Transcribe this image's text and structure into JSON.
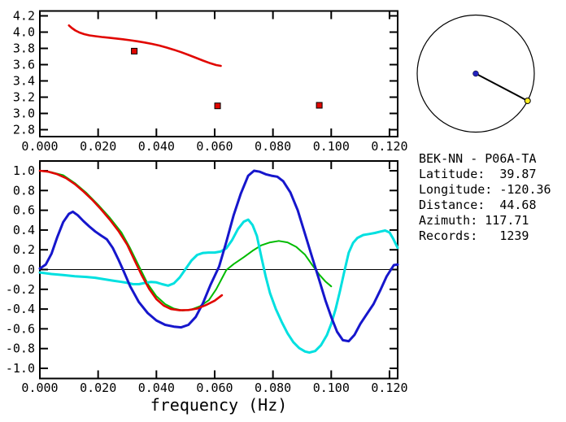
{
  "figure": {
    "background": "#ffffff"
  },
  "station_info": {
    "title": "BEK-NN - P06A-TA",
    "lines": [
      {
        "label": "Latitude:",
        "value": "39.87",
        "text": "Latitude:  39.87"
      },
      {
        "label": "Longitude:",
        "value": "-120.36",
        "text": "Longitude: -120.36"
      },
      {
        "label": "Distance:",
        "value": "44.68",
        "text": "Distance:  44.68"
      },
      {
        "label": "Azimuth:",
        "value": "117.71",
        "text": "Azimuth: 117.71"
      },
      {
        "label": "Records:",
        "value": "1239",
        "text": "Records:   1239"
      }
    ]
  },
  "polar_plot": {
    "azimuth_deg": 117.71,
    "circle_color": "#000000",
    "line_color": "#000000",
    "center_dot_color": "#2222bb",
    "azimuth_dot_color": "#ffee22"
  },
  "chart_data": [
    {
      "id": "dispersion-plot",
      "type": "line",
      "title": "",
      "xlabel": "",
      "ylabel": "",
      "xlim": [
        0,
        0.1228
      ],
      "ylim": [
        2.71,
        4.26
      ],
      "grid": false,
      "legend": "none",
      "x_tick_values": [
        0,
        0.02,
        0.04,
        0.06,
        0.08,
        0.1,
        0.12
      ],
      "x_tick_labels": [
        "0.000",
        "0.020",
        "0.040",
        "0.060",
        "0.080",
        "0.100",
        "0.120"
      ],
      "y_tick_values": [
        4.2,
        4.0,
        3.8,
        3.6,
        3.4,
        3.2,
        3.0,
        2.8
      ],
      "y_tick_labels": [
        "4.2",
        "4.0",
        "3.8",
        "3.6",
        "3.4",
        "3.2",
        "3.0",
        "2.8"
      ],
      "zero_line": false,
      "series": [
        {
          "name": "dispersion-curve",
          "color": "#e10600",
          "width": 2.6,
          "points": [
            [
              0.01,
              4.082
            ],
            [
              0.011,
              4.05
            ],
            [
              0.0122,
              4.02
            ],
            [
              0.0136,
              3.995
            ],
            [
              0.0152,
              3.975
            ],
            [
              0.017,
              3.96
            ],
            [
              0.019,
              3.95
            ],
            [
              0.0212,
              3.94
            ],
            [
              0.0235,
              3.932
            ],
            [
              0.026,
              3.922
            ],
            [
              0.0285,
              3.912
            ],
            [
              0.031,
              3.9
            ],
            [
              0.0335,
              3.887
            ],
            [
              0.036,
              3.872
            ],
            [
              0.0385,
              3.855
            ],
            [
              0.041,
              3.835
            ],
            [
              0.0435,
              3.81
            ],
            [
              0.046,
              3.783
            ],
            [
              0.0485,
              3.753
            ],
            [
              0.051,
              3.72
            ],
            [
              0.0535,
              3.685
            ],
            [
              0.056,
              3.65
            ],
            [
              0.0585,
              3.617
            ],
            [
              0.0605,
              3.595
            ],
            [
              0.0621,
              3.585
            ]
          ]
        }
      ],
      "markers": [
        {
          "name": "picked-dispersion-points",
          "color": "#e10600",
          "outline": "#000000",
          "size": 7,
          "points": [
            [
              0.0324,
              3.766
            ],
            [
              0.061,
              3.093
            ],
            [
              0.0959,
              3.1
            ]
          ]
        }
      ]
    },
    {
      "id": "kernel-plot",
      "type": "line",
      "title": "",
      "xlabel": "frequency (Hz)",
      "ylabel": "",
      "xlim": [
        0,
        0.1228
      ],
      "ylim": [
        -1.11,
        1.09
      ],
      "grid": false,
      "legend": "none",
      "x_tick_values": [
        0,
        0.02,
        0.04,
        0.06,
        0.08,
        0.1,
        0.12
      ],
      "x_tick_labels": [
        "0.000",
        "0.020",
        "0.040",
        "0.060",
        "0.080",
        "0.100",
        "0.120"
      ],
      "y_tick_values": [
        1.0,
        0.8,
        0.6,
        0.4,
        0.2,
        0.0,
        -0.2,
        -0.4,
        -0.6,
        -0.8,
        -1.0
      ],
      "y_tick_labels": [
        "1.0",
        "0.8",
        "0.6",
        "0.4",
        "0.2",
        "0.0",
        "-0.2",
        "-0.4",
        "-0.6",
        "-0.8",
        "-1.0"
      ],
      "zero_line": true,
      "series": [
        {
          "name": "curve-green",
          "color": "#00bb00",
          "width": 2,
          "points": [
            [
              0,
              1.0
            ],
            [
              0.004,
              0.985
            ],
            [
              0.008,
              0.955
            ],
            [
              0.012,
              0.875
            ],
            [
              0.016,
              0.775
            ],
            [
              0.02,
              0.655
            ],
            [
              0.024,
              0.525
            ],
            [
              0.028,
              0.375
            ],
            [
              0.031,
              0.215
            ],
            [
              0.034,
              0.035
            ],
            [
              0.037,
              -0.145
            ],
            [
              0.04,
              -0.27
            ],
            [
              0.043,
              -0.35
            ],
            [
              0.046,
              -0.395
            ],
            [
              0.049,
              -0.415
            ],
            [
              0.052,
              -0.405
            ],
            [
              0.055,
              -0.37
            ],
            [
              0.058,
              -0.31
            ],
            [
              0.0605,
              -0.2
            ],
            [
              0.0625,
              -0.09
            ],
            [
              0.064,
              -0.005
            ],
            [
              0.0665,
              0.055
            ],
            [
              0.07,
              0.125
            ],
            [
              0.073,
              0.19
            ],
            [
              0.076,
              0.245
            ],
            [
              0.079,
              0.275
            ],
            [
              0.082,
              0.29
            ],
            [
              0.085,
              0.275
            ],
            [
              0.088,
              0.23
            ],
            [
              0.091,
              0.15
            ],
            [
              0.0935,
              0.045
            ],
            [
              0.096,
              -0.055
            ],
            [
              0.098,
              -0.12
            ],
            [
              0.1,
              -0.17
            ]
          ]
        },
        {
          "name": "curve-cyan",
          "color": "#00e0e0",
          "width": 3,
          "points": [
            [
              0,
              -0.03
            ],
            [
              0.004,
              -0.045
            ],
            [
              0.008,
              -0.055
            ],
            [
              0.012,
              -0.068
            ],
            [
              0.016,
              -0.075
            ],
            [
              0.019,
              -0.083
            ],
            [
              0.022,
              -0.098
            ],
            [
              0.025,
              -0.112
            ],
            [
              0.028,
              -0.125
            ],
            [
              0.03,
              -0.135
            ],
            [
              0.032,
              -0.148
            ],
            [
              0.034,
              -0.148
            ],
            [
              0.036,
              -0.136
            ],
            [
              0.038,
              -0.126
            ],
            [
              0.04,
              -0.13
            ],
            [
              0.042,
              -0.148
            ],
            [
              0.044,
              -0.163
            ],
            [
              0.046,
              -0.14
            ],
            [
              0.048,
              -0.08
            ],
            [
              0.05,
              0.005
            ],
            [
              0.052,
              0.09
            ],
            [
              0.054,
              0.148
            ],
            [
              0.056,
              0.168
            ],
            [
              0.058,
              0.172
            ],
            [
              0.06,
              0.172
            ],
            [
              0.062,
              0.182
            ],
            [
              0.064,
              0.215
            ],
            [
              0.066,
              0.3
            ],
            [
              0.068,
              0.41
            ],
            [
              0.07,
              0.485
            ],
            [
              0.0715,
              0.505
            ],
            [
              0.073,
              0.45
            ],
            [
              0.0745,
              0.34
            ],
            [
              0.076,
              0.13
            ],
            [
              0.0775,
              -0.07
            ],
            [
              0.079,
              -0.24
            ],
            [
              0.081,
              -0.4
            ],
            [
              0.083,
              -0.53
            ],
            [
              0.085,
              -0.645
            ],
            [
              0.087,
              -0.735
            ],
            [
              0.089,
              -0.795
            ],
            [
              0.091,
              -0.83
            ],
            [
              0.0925,
              -0.84
            ],
            [
              0.0945,
              -0.825
            ],
            [
              0.0965,
              -0.765
            ],
            [
              0.0985,
              -0.665
            ],
            [
              0.1,
              -0.55
            ],
            [
              0.1015,
              -0.4
            ],
            [
              0.103,
              -0.22
            ],
            [
              0.1045,
              -0.02
            ],
            [
              0.106,
              0.17
            ],
            [
              0.1075,
              0.27
            ],
            [
              0.109,
              0.32
            ],
            [
              0.111,
              0.35
            ],
            [
              0.113,
              0.36
            ],
            [
              0.115,
              0.37
            ],
            [
              0.117,
              0.385
            ],
            [
              0.1185,
              0.395
            ],
            [
              0.12,
              0.375
            ],
            [
              0.1213,
              0.31
            ],
            [
              0.1228,
              0.22
            ]
          ]
        },
        {
          "name": "curve-blue",
          "color": "#1616cc",
          "width": 3,
          "points": [
            [
              0,
              0.01
            ],
            [
              0.002,
              0.05
            ],
            [
              0.004,
              0.16
            ],
            [
              0.006,
              0.33
            ],
            [
              0.008,
              0.48
            ],
            [
              0.01,
              0.565
            ],
            [
              0.0113,
              0.585
            ],
            [
              0.013,
              0.55
            ],
            [
              0.015,
              0.49
            ],
            [
              0.017,
              0.435
            ],
            [
              0.019,
              0.385
            ],
            [
              0.021,
              0.345
            ],
            [
              0.023,
              0.305
            ],
            [
              0.025,
              0.22
            ],
            [
              0.027,
              0.1
            ],
            [
              0.0288,
              -0.02
            ],
            [
              0.031,
              -0.17
            ],
            [
              0.034,
              -0.33
            ],
            [
              0.037,
              -0.44
            ],
            [
              0.04,
              -0.515
            ],
            [
              0.043,
              -0.56
            ],
            [
              0.046,
              -0.578
            ],
            [
              0.0485,
              -0.585
            ],
            [
              0.051,
              -0.56
            ],
            [
              0.0535,
              -0.48
            ],
            [
              0.056,
              -0.34
            ],
            [
              0.0585,
              -0.16
            ],
            [
              0.0615,
              0.03
            ],
            [
              0.064,
              0.28
            ],
            [
              0.0665,
              0.55
            ],
            [
              0.069,
              0.77
            ],
            [
              0.0715,
              0.95
            ],
            [
              0.0735,
              1.0
            ],
            [
              0.0755,
              0.99
            ],
            [
              0.0775,
              0.965
            ],
            [
              0.0795,
              0.95
            ],
            [
              0.0815,
              0.94
            ],
            [
              0.0835,
              0.895
            ],
            [
              0.086,
              0.78
            ],
            [
              0.0885,
              0.6
            ],
            [
              0.091,
              0.36
            ],
            [
              0.0935,
              0.12
            ],
            [
              0.0958,
              -0.1
            ],
            [
              0.098,
              -0.31
            ],
            [
              0.1,
              -0.48
            ],
            [
              0.102,
              -0.63
            ],
            [
              0.104,
              -0.715
            ],
            [
              0.106,
              -0.725
            ],
            [
              0.108,
              -0.66
            ],
            [
              0.11,
              -0.55
            ],
            [
              0.112,
              -0.46
            ],
            [
              0.1145,
              -0.35
            ],
            [
              0.117,
              -0.2
            ],
            [
              0.119,
              -0.07
            ],
            [
              0.1205,
              0.0
            ],
            [
              0.1215,
              0.045
            ],
            [
              0.1228,
              0.05
            ]
          ]
        },
        {
          "name": "curve-red",
          "color": "#e10600",
          "width": 2.6,
          "points": [
            [
              0,
              1.0
            ],
            [
              0.003,
              0.99
            ],
            [
              0.006,
              0.965
            ],
            [
              0.009,
              0.925
            ],
            [
              0.012,
              0.865
            ],
            [
              0.015,
              0.79
            ],
            [
              0.018,
              0.705
            ],
            [
              0.021,
              0.61
            ],
            [
              0.024,
              0.505
            ],
            [
              0.027,
              0.39
            ],
            [
              0.03,
              0.25
            ],
            [
              0.0325,
              0.095
            ],
            [
              0.035,
              -0.06
            ],
            [
              0.0375,
              -0.195
            ],
            [
              0.04,
              -0.3
            ],
            [
              0.0425,
              -0.365
            ],
            [
              0.045,
              -0.4
            ],
            [
              0.048,
              -0.412
            ],
            [
              0.051,
              -0.41
            ],
            [
              0.054,
              -0.395
            ],
            [
              0.057,
              -0.36
            ],
            [
              0.06,
              -0.315
            ],
            [
              0.0625,
              -0.26
            ]
          ]
        }
      ],
      "markers": []
    }
  ]
}
